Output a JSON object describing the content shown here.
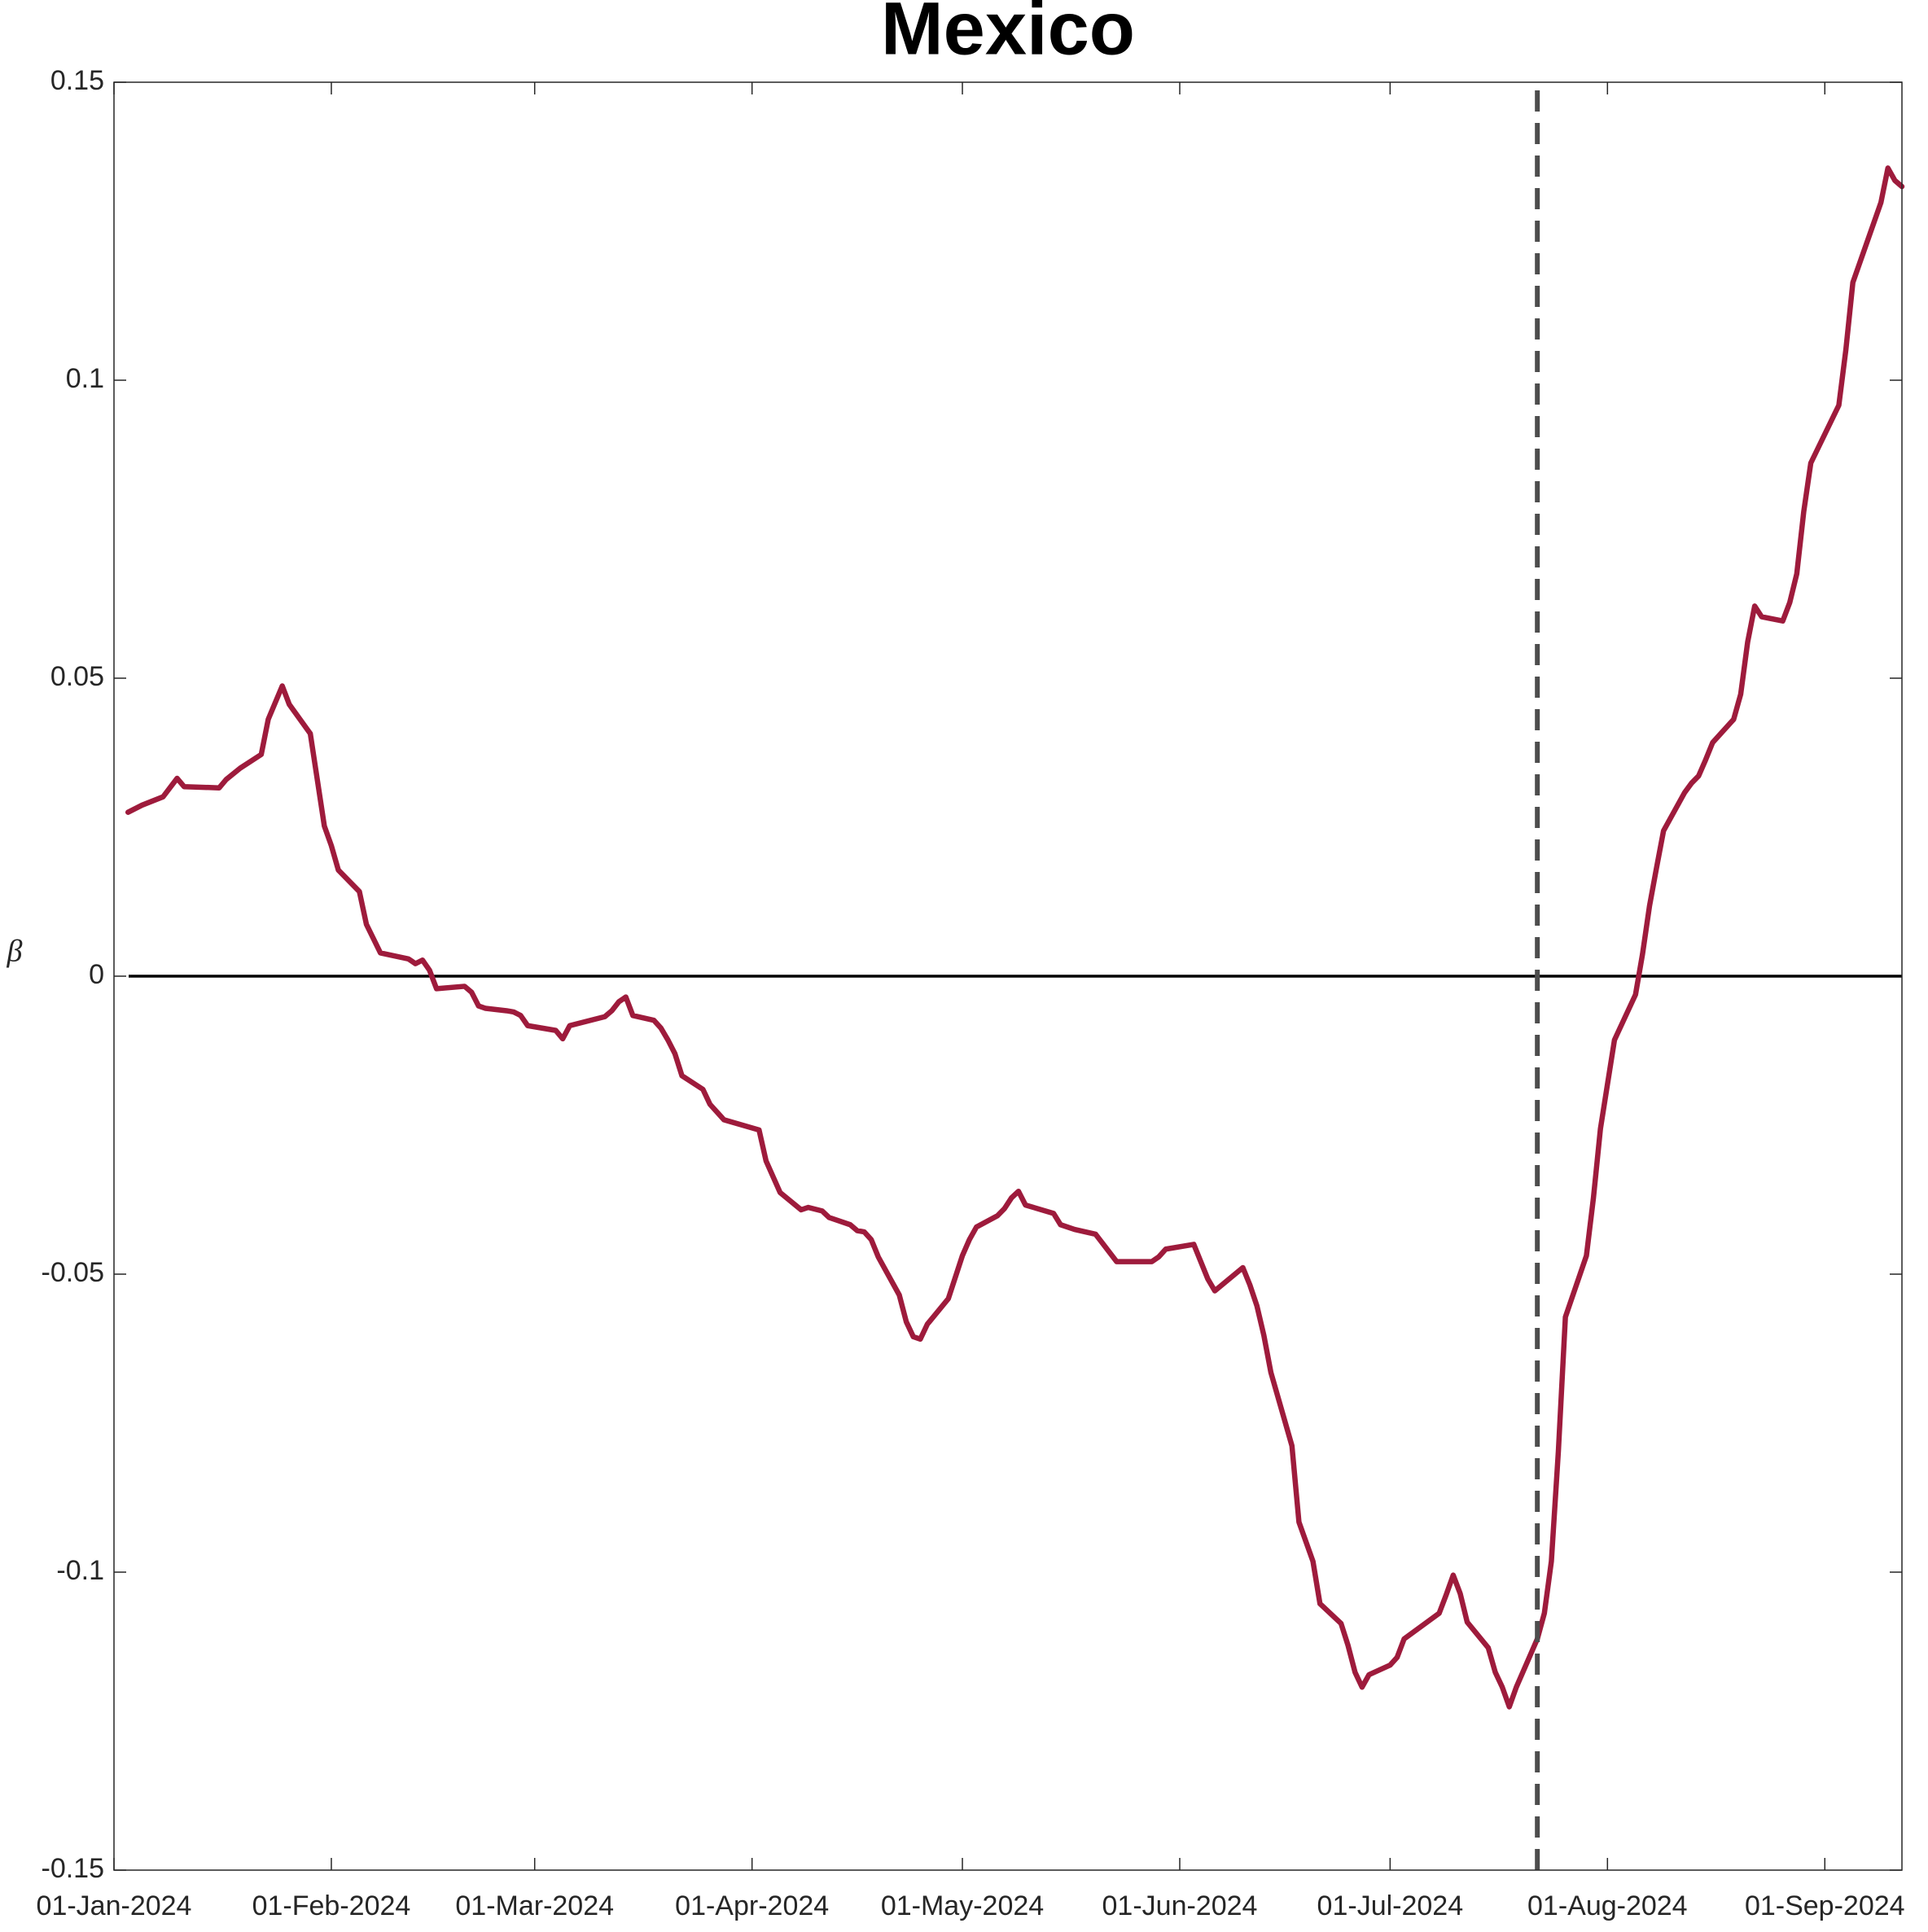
{
  "chart_data": {
    "type": "line",
    "title": "Mexico",
    "y_label": "β",
    "color": "#9e1b3c",
    "x": [
      "2024-01-03",
      "2024-01-05",
      "2024-01-08",
      "2024-01-10",
      "2024-01-11",
      "2024-01-16",
      "2024-01-17",
      "2024-01-19",
      "2024-01-22",
      "2024-01-23",
      "2024-01-25",
      "2024-01-26",
      "2024-01-29",
      "2024-01-31",
      "2024-02-01",
      "2024-02-02",
      "2024-02-05",
      "2024-02-06",
      "2024-02-08",
      "2024-02-12",
      "2024-02-13",
      "2024-02-14",
      "2024-02-15",
      "2024-02-16",
      "2024-02-20",
      "2024-02-21",
      "2024-02-22",
      "2024-02-23",
      "2024-02-26",
      "2024-02-27",
      "2024-02-28",
      "2024-02-29",
      "2024-03-04",
      "2024-03-05",
      "2024-03-06",
      "2024-03-11",
      "2024-03-12",
      "2024-03-13",
      "2024-03-14",
      "2024-03-15",
      "2024-03-18",
      "2024-03-19",
      "2024-03-20",
      "2024-03-21",
      "2024-03-22",
      "2024-03-25",
      "2024-03-26",
      "2024-03-28",
      "2024-04-02",
      "2024-04-03",
      "2024-04-05",
      "2024-04-08",
      "2024-04-09",
      "2024-04-11",
      "2024-04-12",
      "2024-04-15",
      "2024-04-16",
      "2024-04-17",
      "2024-04-18",
      "2024-04-19",
      "2024-04-22",
      "2024-04-23",
      "2024-04-24",
      "2024-04-25",
      "2024-04-26",
      "2024-04-29",
      "2024-05-01",
      "2024-05-02",
      "2024-05-03",
      "2024-05-06",
      "2024-05-07",
      "2024-05-08",
      "2024-05-09",
      "2024-05-10",
      "2024-05-14",
      "2024-05-15",
      "2024-05-17",
      "2024-05-20",
      "2024-05-23",
      "2024-05-28",
      "2024-05-29",
      "2024-05-30",
      "2024-06-03",
      "2024-06-04",
      "2024-06-05",
      "2024-06-06",
      "2024-06-10",
      "2024-06-11",
      "2024-06-12",
      "2024-06-13",
      "2024-06-14",
      "2024-06-17",
      "2024-06-18",
      "2024-06-20",
      "2024-06-21",
      "2024-06-24",
      "2024-06-25",
      "2024-06-26",
      "2024-06-27",
      "2024-06-28",
      "2024-07-01",
      "2024-07-02",
      "2024-07-03",
      "2024-07-08",
      "2024-07-09",
      "2024-07-10",
      "2024-07-11",
      "2024-07-12",
      "2024-07-15",
      "2024-07-16",
      "2024-07-17",
      "2024-07-18",
      "2024-07-19",
      "2024-07-22",
      "2024-07-23",
      "2024-07-24",
      "2024-07-25",
      "2024-07-26",
      "2024-07-29",
      "2024-07-30",
      "2024-07-31",
      "2024-08-02",
      "2024-08-05",
      "2024-08-06",
      "2024-08-07",
      "2024-08-08",
      "2024-08-09",
      "2024-08-12",
      "2024-08-13",
      "2024-08-14",
      "2024-08-15",
      "2024-08-16",
      "2024-08-19",
      "2024-08-20",
      "2024-08-21",
      "2024-08-22",
      "2024-08-23",
      "2024-08-26",
      "2024-08-27",
      "2024-08-28",
      "2024-08-29",
      "2024-08-30",
      "2024-09-03",
      "2024-09-04",
      "2024-09-05",
      "2024-09-09",
      "2024-09-10",
      "2024-09-11",
      "2024-09-12"
    ],
    "values": [
      0.0275,
      0.0287,
      0.0301,
      0.0332,
      0.0318,
      0.0316,
      0.033,
      0.0349,
      0.0372,
      0.0431,
      0.0487,
      0.0456,
      0.0407,
      0.0252,
      0.0219,
      0.0178,
      0.0142,
      0.0087,
      0.0039,
      0.0029,
      0.0021,
      0.0027,
      0.001,
      -0.0021,
      -0.0017,
      -0.0027,
      -0.005,
      -0.0054,
      -0.0058,
      -0.006,
      -0.0066,
      -0.0083,
      -0.0091,
      -0.0105,
      -0.0083,
      -0.0068,
      -0.0058,
      -0.0043,
      -0.0035,
      -0.0066,
      -0.0074,
      -0.0087,
      -0.0107,
      -0.013,
      -0.0167,
      -0.019,
      -0.0215,
      -0.0241,
      -0.0258,
      -0.031,
      -0.0363,
      -0.0392,
      -0.0388,
      -0.0394,
      -0.0405,
      -0.0417,
      -0.0427,
      -0.0429,
      -0.0442,
      -0.0471,
      -0.0535,
      -0.058,
      -0.0605,
      -0.0609,
      -0.0584,
      -0.0541,
      -0.0469,
      -0.0442,
      -0.0421,
      -0.0402,
      -0.039,
      -0.0372,
      -0.0361,
      -0.0384,
      -0.0398,
      -0.0417,
      -0.0425,
      -0.0433,
      -0.0479,
      -0.0479,
      -0.0471,
      -0.0458,
      -0.045,
      -0.0479,
      -0.0508,
      -0.0528,
      -0.0489,
      -0.0518,
      -0.0553,
      -0.0603,
      -0.0665,
      -0.0788,
      -0.0916,
      -0.0982,
      -0.1053,
      -0.1086,
      -0.1123,
      -0.1168,
      -0.1193,
      -0.1172,
      -0.1156,
      -0.1143,
      -0.1112,
      -0.1069,
      -0.1038,
      -0.1005,
      -0.1036,
      -0.1084,
      -0.1127,
      -0.1168,
      -0.1193,
      -0.1226,
      -0.1193,
      -0.1112,
      -0.1069,
      -0.0982,
      -0.0797,
      -0.0572,
      -0.0469,
      -0.0372,
      -0.0256,
      -0.0107,
      -0.0031,
      0.0037,
      0.0118,
      0.0182,
      0.0244,
      0.0308,
      0.0324,
      0.0336,
      0.0363,
      0.0392,
      0.0431,
      0.0473,
      0.0561,
      0.0621,
      0.0603,
      0.0596,
      0.0627,
      0.0675,
      0.078,
      0.0861,
      0.0958,
      0.1051,
      0.1164,
      0.1298,
      0.1356,
      0.1335,
      0.1325
    ],
    "xlim": [
      "2024-01-01",
      "2024-09-12"
    ],
    "xticks": [
      {
        "value": "2024-01-01",
        "label": "01-Jan-2024"
      },
      {
        "value": "2024-02-01",
        "label": "01-Feb-2024"
      },
      {
        "value": "2024-03-01",
        "label": "01-Mar-2024"
      },
      {
        "value": "2024-04-01",
        "label": "01-Apr-2024"
      },
      {
        "value": "2024-05-01",
        "label": "01-May-2024"
      },
      {
        "value": "2024-06-01",
        "label": "01-Jun-2024"
      },
      {
        "value": "2024-07-01",
        "label": "01-Jul-2024"
      },
      {
        "value": "2024-08-01",
        "label": "01-Aug-2024"
      },
      {
        "value": "2024-09-01",
        "label": "01-Sep-2024"
      }
    ],
    "ylim": [
      -0.15,
      0.15
    ],
    "yticks": [
      -0.15,
      -0.1,
      -0.05,
      0,
      0.05,
      0.1,
      0.15
    ],
    "hline": 0,
    "vline": "2024-07-22",
    "vline_color": "#4d4d4d"
  }
}
